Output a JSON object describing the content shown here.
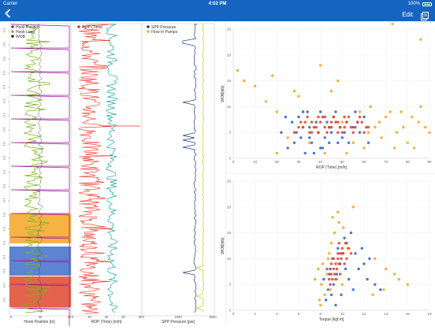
{
  "status_bar": {
    "carrier": "Carrier",
    "time": "4:02 PM",
    "battery": "100%"
  },
  "nav": {
    "edit_label": "Edit"
  },
  "icons": {
    "back": "chevron-left-icon",
    "share": "share-icon",
    "battery": "battery-icon"
  },
  "colors": {
    "brand": "#1565c0",
    "purple": "#a020a0",
    "green": "#7cb518",
    "red": "#ef2b1e",
    "teal": "#22a8a0",
    "navy": "#1f3d7a",
    "yellow": "#c8c819",
    "blue_dot": "#3567c8",
    "orange_dot": "#f5a623",
    "red_dot": "#e0482a",
    "band_orange": "#f5a623",
    "band_blue": "#3f6fc9",
    "band_red": "#e0482a"
  },
  "tracks": {
    "track1": {
      "legend": [
        "Hook Position",
        "Hook Load",
        "WOB"
      ],
      "xlabel": "Hook Position [m]",
      "ticks": [
        "0",
        "20",
        "40"
      ]
    },
    "track2": {
      "legend": [
        "ROP (Time)"
      ],
      "xlabel": "ROP (Time) [m/h]",
      "ticks": [
        "0",
        "20",
        "40",
        "60",
        "80"
      ]
    },
    "track3": {
      "legend": [
        "SPP Pressure",
        "Flow In Pumps"
      ],
      "xlabel": "SPP Pressure [psi]",
      "ticks": [
        "0",
        "1000",
        "2000"
      ]
    }
  },
  "chart_data": [
    {
      "type": "scatter",
      "xlabel": "ROP (Time) [m/h]",
      "ylabel": "WOB[klb]",
      "xticks": [
        "0",
        "10",
        "20",
        "30",
        "40",
        "50",
        "60",
        "70",
        "80",
        "90"
      ],
      "yticks": [
        "0",
        "5",
        "10",
        "15",
        "20",
        "25"
      ],
      "xlim": [
        0,
        90
      ],
      "ylim": [
        0,
        25
      ],
      "series": [
        {
          "color": "#3567c8",
          "points": [
            [
              28,
              3
            ],
            [
              32,
              6
            ],
            [
              35,
              4
            ],
            [
              40,
              9
            ],
            [
              45,
              5
            ],
            [
              52,
              7
            ],
            [
              30,
              8
            ],
            [
              25,
              2
            ],
            [
              48,
              3
            ],
            [
              55,
              6
            ],
            [
              38,
              7
            ],
            [
              42,
              4
            ],
            [
              22,
              5
            ],
            [
              60,
              8
            ],
            [
              33,
              1
            ],
            [
              47,
              9
            ],
            [
              36,
              3
            ],
            [
              44,
              6
            ],
            [
              50,
              4
            ],
            [
              27,
              7
            ],
            [
              41,
              2
            ],
            [
              58,
              5
            ],
            [
              34,
              9
            ],
            [
              46,
              8
            ],
            [
              39,
              5
            ],
            [
              53,
              3
            ],
            [
              31,
              4
            ],
            [
              56,
              9
            ],
            [
              43,
              7
            ],
            [
              37,
              1
            ],
            [
              29,
              5
            ],
            [
              49,
              6
            ],
            [
              62,
              3
            ],
            [
              24,
              8
            ],
            [
              35,
              6
            ],
            [
              40,
              2
            ],
            [
              57,
              7
            ],
            [
              44,
              3
            ],
            [
              32,
              9
            ],
            [
              51,
              5
            ]
          ]
        },
        {
          "color": "#f5a623",
          "points": [
            [
              2,
              17
            ],
            [
              5,
              15
            ],
            [
              15,
              11
            ],
            [
              20,
              9
            ],
            [
              25,
              4
            ],
            [
              60,
              2
            ],
            [
              65,
              6
            ],
            [
              70,
              8
            ],
            [
              75,
              5
            ],
            [
              80,
              3
            ],
            [
              85,
              7
            ],
            [
              58,
              9
            ],
            [
              63,
              10
            ],
            [
              68,
              4
            ],
            [
              72,
              9
            ],
            [
              78,
              6
            ],
            [
              83,
              2
            ],
            [
              55,
              3
            ],
            [
              67,
              7
            ],
            [
              74,
              2
            ],
            [
              86,
              10
            ],
            [
              52,
              1
            ],
            [
              88,
              6
            ],
            [
              30,
              12
            ],
            [
              28,
              13
            ],
            [
              40,
              18
            ],
            [
              90,
              5
            ],
            [
              86,
              23
            ],
            [
              73,
              26
            ],
            [
              48,
              15
            ],
            [
              18,
              16
            ],
            [
              10,
              14
            ],
            [
              45,
              13
            ],
            [
              50,
              7
            ],
            [
              35,
              3
            ],
            [
              42,
              1
            ],
            [
              62,
              5
            ],
            [
              77,
              9
            ],
            [
              82,
              8
            ],
            [
              20,
              1
            ]
          ]
        },
        {
          "color": "#e0482a",
          "points": [
            [
              30,
              6
            ],
            [
              33,
              7
            ],
            [
              36,
              5
            ],
            [
              39,
              8
            ],
            [
              42,
              6
            ],
            [
              45,
              7
            ],
            [
              48,
              5
            ],
            [
              51,
              8
            ],
            [
              54,
              6
            ],
            [
              57,
              7
            ],
            [
              60,
              5
            ],
            [
              28,
              5
            ],
            [
              34,
              8
            ],
            [
              37,
              6
            ],
            [
              40,
              7
            ],
            [
              43,
              5
            ],
            [
              46,
              8
            ],
            [
              49,
              6
            ],
            [
              52,
              7
            ],
            [
              55,
              5
            ],
            [
              58,
              8
            ],
            [
              61,
              6
            ],
            [
              31,
              7
            ],
            [
              35,
              5
            ],
            [
              38,
              6
            ],
            [
              41,
              8
            ],
            [
              44,
              6
            ],
            [
              47,
              7
            ],
            [
              50,
              5
            ],
            [
              53,
              8
            ],
            [
              56,
              6
            ],
            [
              59,
              7
            ],
            [
              62,
              6
            ],
            [
              32,
              6
            ],
            [
              36,
              7
            ],
            [
              39,
              5
            ],
            [
              42,
              8
            ],
            [
              45,
              6
            ],
            [
              48,
              7
            ],
            [
              51,
              6
            ]
          ]
        }
      ]
    },
    {
      "type": "scatter",
      "xlabel": "Torque [kgf m]",
      "ylabel": "WOB[klb]",
      "xticks": [
        "0",
        "2",
        "4",
        "6",
        "8",
        "10",
        "12",
        "14",
        "16",
        "18"
      ],
      "yticks": [
        "0",
        "5",
        "10",
        "15",
        "20",
        "25"
      ],
      "xlim": [
        0,
        18
      ],
      "ylim": [
        0,
        25
      ],
      "series": [
        {
          "color": "#3567c8",
          "points": [
            [
              8.5,
              2
            ],
            [
              9,
              3
            ],
            [
              8.7,
              4
            ],
            [
              9.2,
              5
            ],
            [
              8.3,
              6
            ],
            [
              9.5,
              7
            ],
            [
              8.9,
              8
            ],
            [
              9.8,
              9
            ],
            [
              9.1,
              10
            ],
            [
              10,
              11
            ],
            [
              9.6,
              12
            ],
            [
              10.4,
              13
            ],
            [
              10.2,
              14
            ],
            [
              10.8,
              15
            ],
            [
              11.2,
              11
            ],
            [
              12,
              9
            ],
            [
              11.5,
              8
            ],
            [
              12.3,
              6
            ],
            [
              13,
              5
            ],
            [
              13.5,
              4
            ],
            [
              9.4,
              1
            ],
            [
              10.6,
              6
            ],
            [
              11,
              4
            ],
            [
              9.9,
              3
            ],
            [
              8.8,
              7
            ],
            [
              10.3,
              8
            ],
            [
              11.8,
              12
            ],
            [
              12.5,
              10
            ]
          ]
        },
        {
          "color": "#f5a623",
          "points": [
            [
              8,
              1
            ],
            [
              8.4,
              3
            ],
            [
              8.1,
              5
            ],
            [
              8.6,
              7
            ],
            [
              8.2,
              9
            ],
            [
              8.8,
              11
            ],
            [
              9,
              13
            ],
            [
              9.3,
              15
            ],
            [
              9.1,
              18
            ],
            [
              9.7,
              17
            ],
            [
              10.1,
              16
            ],
            [
              10.5,
              12
            ],
            [
              7.8,
              8
            ],
            [
              7.5,
              6
            ],
            [
              8.9,
              4
            ],
            [
              11,
              20
            ],
            [
              13,
              10
            ],
            [
              14,
              8
            ],
            [
              14.8,
              7
            ],
            [
              15.2,
              6
            ],
            [
              16,
              5
            ],
            [
              13.8,
              4
            ],
            [
              12.8,
              3
            ],
            [
              9.6,
              19
            ],
            [
              7.9,
              2
            ],
            [
              8.7,
              10
            ],
            [
              9.5,
              6
            ],
            [
              10,
              5
            ]
          ]
        },
        {
          "color": "#e0482a",
          "points": [
            [
              8.8,
              6
            ],
            [
              9,
              7
            ],
            [
              9.2,
              8
            ],
            [
              9.4,
              9
            ],
            [
              9.6,
              10
            ],
            [
              9.8,
              11
            ],
            [
              10,
              12
            ],
            [
              9.1,
              6
            ],
            [
              9.3,
              7
            ],
            [
              9.5,
              8
            ],
            [
              9.7,
              9
            ],
            [
              9.9,
              10
            ],
            [
              10.1,
              11
            ],
            [
              8.9,
              5
            ],
            [
              9.4,
              6
            ],
            [
              9.8,
              7
            ],
            [
              10.2,
              9
            ],
            [
              10.4,
              10
            ],
            [
              8.6,
              8
            ],
            [
              9,
              9
            ],
            [
              10.6,
              12
            ],
            [
              9.6,
              11
            ],
            [
              10.3,
              13
            ],
            [
              9.2,
              10
            ],
            [
              10.8,
              11
            ],
            [
              9.7,
              13
            ]
          ]
        }
      ]
    }
  ]
}
